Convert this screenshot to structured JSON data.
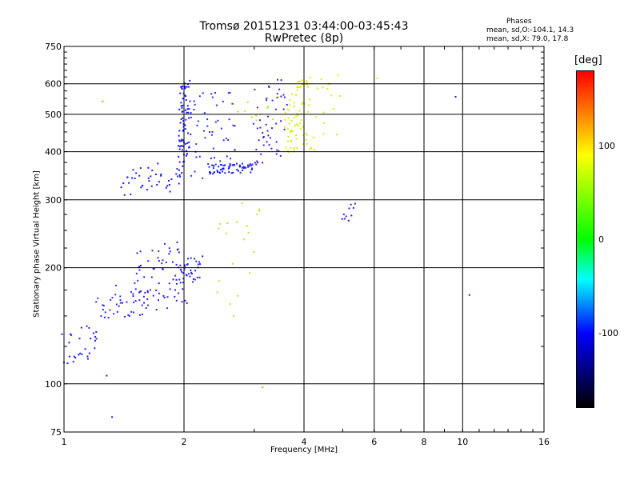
{
  "chart_data": {
    "type": "scatter",
    "title": "Tromsø 20151231 03:44:00-03:45:43",
    "subtitle": "RwPretec (8p)",
    "xlabel": "Frequency [MHz]",
    "ylabel": "Stationary phase Virtual Height [km]",
    "x_scale": "log",
    "y_scale": "log",
    "xlim": [
      1,
      16
    ],
    "ylim": [
      75,
      750
    ],
    "x_ticks": [
      "1",
      "2",
      "4",
      "6",
      "8",
      "10",
      "16"
    ],
    "y_ticks": [
      "75",
      "100",
      "200",
      "300",
      "400",
      "500",
      "600",
      "750"
    ],
    "grid": true,
    "colorbar": {
      "label": "[deg]",
      "ticks": [
        "100",
        "0",
        "-100"
      ],
      "colors": [
        "#ff0000",
        "#ffff00",
        "#00ff00",
        "#00ffff",
        "#0000ff",
        "#000000"
      ]
    },
    "legend": {
      "title": "Phases",
      "o_stats": "mean, sd,O:-104.1, 14.3",
      "x_stats": "mean, sd,X: 79.0, 17.8"
    },
    "clusters": [
      {
        "trace": "O",
        "color": "#1a1aff",
        "f_start": 1.0,
        "f_end": 1.22,
        "h_start": 112,
        "h_end": 145,
        "count": 28
      },
      {
        "trace": "O",
        "color": "#2a2aff",
        "f_start": 1.22,
        "f_end": 1.6,
        "h_start": 145,
        "h_end": 185,
        "count": 40
      },
      {
        "trace": "O",
        "color": "#3a1aee",
        "f_start": 1.5,
        "f_end": 2.05,
        "h_start": 150,
        "h_end": 240,
        "count": 70
      },
      {
        "trace": "O",
        "color": "#2020ff",
        "f_start": 1.92,
        "f_end": 2.2,
        "h_start": 180,
        "h_end": 215,
        "count": 35
      },
      {
        "trace": "O",
        "color": "#1a1aff",
        "f_start": 1.4,
        "f_end": 1.95,
        "h_start": 305,
        "h_end": 380,
        "count": 40
      },
      {
        "trace": "O",
        "color": "#1818ff",
        "f_start": 1.95,
        "f_end": 2.05,
        "h_start": 330,
        "h_end": 640,
        "count": 80
      },
      {
        "trace": "O",
        "color": "#2a2aff",
        "f_start": 2.05,
        "f_end": 2.7,
        "h_start": 330,
        "h_end": 620,
        "count": 55
      },
      {
        "trace": "O",
        "color": "#1d1dff",
        "f_start": 2.3,
        "f_end": 3.0,
        "h_start": 350,
        "h_end": 375,
        "count": 60
      },
      {
        "trace": "O",
        "color": "#4a1ad0",
        "f_start": 3.0,
        "f_end": 3.6,
        "h_start": 360,
        "h_end": 630,
        "count": 50
      },
      {
        "trace": "O",
        "color": "#3a1acc",
        "f_start": 5.0,
        "f_end": 5.4,
        "h_start": 255,
        "h_end": 295,
        "count": 10
      },
      {
        "trace": "X",
        "color": "#d8ee10",
        "f_start": 3.6,
        "f_end": 4.1,
        "h_start": 390,
        "h_end": 630,
        "count": 80
      },
      {
        "trace": "X",
        "color": "#e4e400",
        "f_start": 4.1,
        "f_end": 4.9,
        "h_start": 400,
        "h_end": 650,
        "count": 20
      },
      {
        "trace": "X",
        "color": "#ccdd22",
        "f_start": 2.4,
        "f_end": 3.1,
        "h_start": 140,
        "h_end": 310,
        "count": 20
      },
      {
        "trace": "X",
        "color": "#aaee22",
        "f_start": 2.7,
        "f_end": 3.4,
        "h_start": 470,
        "h_end": 560,
        "count": 12
      }
    ],
    "isolated_points": [
      {
        "f": 9.6,
        "h": 555,
        "color": "#3a1aa0"
      },
      {
        "f": 10.4,
        "h": 170,
        "color": "#3a1aa0"
      },
      {
        "f": 1.32,
        "h": 82,
        "color": "#1a1aff"
      },
      {
        "f": 1.28,
        "h": 105,
        "color": "#1a1aff"
      },
      {
        "f": 6.1,
        "h": 620,
        "color": "#e4e400"
      },
      {
        "f": 1.25,
        "h": 540,
        "color": "#ff8800"
      },
      {
        "f": 3.15,
        "h": 98,
        "color": "#ccaa00"
      }
    ]
  }
}
